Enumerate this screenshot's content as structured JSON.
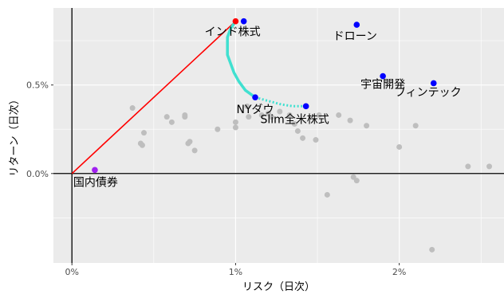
{
  "chart_data": {
    "type": "scatter",
    "title": "",
    "xlabel": "リスク（日次）",
    "ylabel": "リターン（日次）",
    "x_unit": "%",
    "y_unit": "%",
    "xlim": [
      -0.113,
      2.64
    ],
    "ylim": [
      -0.505,
      0.935
    ],
    "x_ticks": [
      {
        "v": 0,
        "label": "0%"
      },
      {
        "v": 1,
        "label": "1%"
      },
      {
        "v": 2,
        "label": "2%"
      }
    ],
    "y_ticks": [
      {
        "v": 0,
        "label": "0.0%"
      },
      {
        "v": 0.5,
        "label": "0.5%"
      }
    ],
    "grid": true,
    "colors": {
      "panel": "#ebebeb",
      "grid": "#ffffff",
      "axis_lines": "#000000",
      "gray_points": "#bebebe",
      "highlight_points": "#0000ff",
      "risk_free_point": "#a020f0",
      "tangency_point": "#ff0000",
      "cml_line": "#ff0000",
      "frontier": "#40e0d0"
    },
    "gray_points": [
      [
        0.37,
        0.37
      ],
      [
        0.42,
        0.17
      ],
      [
        0.43,
        0.16
      ],
      [
        0.44,
        0.23
      ],
      [
        0.58,
        0.32
      ],
      [
        0.61,
        0.29
      ],
      [
        0.69,
        0.33
      ],
      [
        0.69,
        0.32
      ],
      [
        0.71,
        0.17
      ],
      [
        0.72,
        0.18
      ],
      [
        0.75,
        0.13
      ],
      [
        0.89,
        0.25
      ],
      [
        1.0,
        0.26
      ],
      [
        1.0,
        0.29
      ],
      [
        1.07,
        0.38
      ],
      [
        1.08,
        0.32
      ],
      [
        1.16,
        0.33
      ],
      [
        1.2,
        0.34
      ],
      [
        1.22,
        0.32
      ],
      [
        1.27,
        0.35
      ],
      [
        1.33,
        0.33
      ],
      [
        1.36,
        0.28
      ],
      [
        1.38,
        0.24
      ],
      [
        1.41,
        0.2
      ],
      [
        1.49,
        0.19
      ],
      [
        1.51,
        0.33
      ],
      [
        1.56,
        -0.12
      ],
      [
        1.63,
        0.33
      ],
      [
        1.7,
        0.3
      ],
      [
        1.72,
        -0.02
      ],
      [
        1.74,
        -0.04
      ],
      [
        1.8,
        0.27
      ],
      [
        2.0,
        0.15
      ],
      [
        2.1,
        0.27
      ],
      [
        2.2,
        -0.43
      ],
      [
        2.42,
        0.04
      ],
      [
        2.55,
        0.04
      ]
    ],
    "highlight_points": [
      {
        "x": 1.05,
        "y": 0.86,
        "label": "インド株式"
      },
      {
        "x": 1.74,
        "y": 0.84,
        "label": "ドローン"
      },
      {
        "x": 1.9,
        "y": 0.55,
        "label": "宇宙開発"
      },
      {
        "x": 2.21,
        "y": 0.51,
        "label": "フィンテック"
      },
      {
        "x": 1.12,
        "y": 0.43,
        "label": "NYダウ"
      },
      {
        "x": 1.43,
        "y": 0.38,
        "label": "Slim全米株式"
      }
    ],
    "risk_free_point": {
      "x": 0.14,
      "y": 0.02,
      "label": "国内債券"
    },
    "tangency_point": {
      "x": 1.0,
      "y": 0.86
    },
    "capital_market_line": [
      [
        0.0,
        0.0
      ],
      [
        1.0,
        0.86
      ]
    ],
    "efficient_frontier_solid": [
      [
        1.0,
        0.86
      ],
      [
        0.97,
        0.82
      ],
      [
        0.95,
        0.77
      ],
      [
        0.95,
        0.72
      ],
      [
        0.95,
        0.67
      ],
      [
        0.97,
        0.62
      ],
      [
        0.99,
        0.57
      ],
      [
        1.02,
        0.52
      ],
      [
        1.06,
        0.47
      ],
      [
        1.12,
        0.43
      ]
    ],
    "efficient_frontier_dotted": [
      [
        1.12,
        0.43
      ],
      [
        1.2,
        0.41
      ],
      [
        1.28,
        0.39
      ],
      [
        1.35,
        0.38
      ],
      [
        1.43,
        0.38
      ]
    ]
  }
}
